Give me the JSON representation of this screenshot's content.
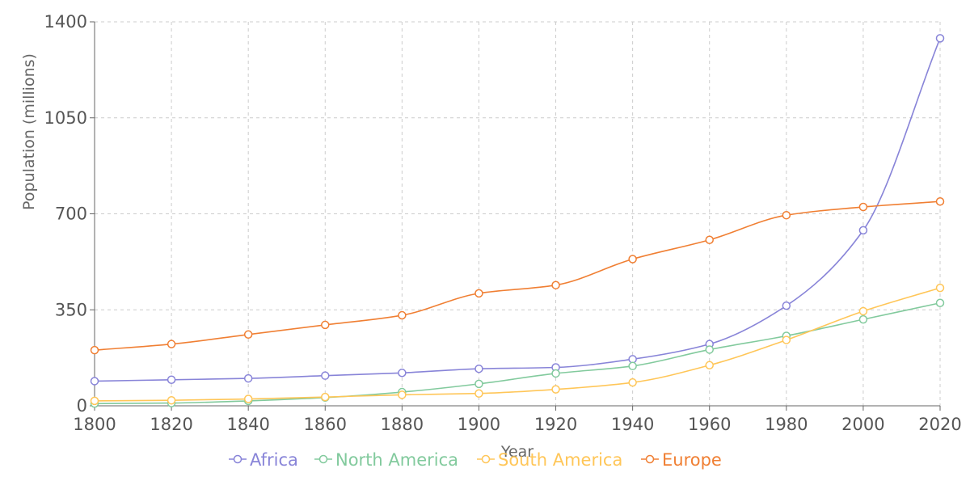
{
  "chart_data": {
    "type": "line",
    "xlabel": "Year",
    "ylabel": "Population (millions)",
    "x": [
      1800,
      1820,
      1840,
      1860,
      1880,
      1900,
      1920,
      1940,
      1960,
      1980,
      2000,
      2020
    ],
    "xlim": [
      1800,
      2020
    ],
    "ylim": [
      0,
      1400
    ],
    "yticks": [
      0,
      350,
      700,
      1050,
      1400
    ],
    "grid": true,
    "legend_position": "bottom",
    "series": [
      {
        "name": "Africa",
        "color": "#8884d8",
        "values": [
          90,
          95,
          100,
          110,
          120,
          135,
          140,
          170,
          225,
          365,
          640,
          1340
        ]
      },
      {
        "name": "North America",
        "color": "#82ca9d",
        "values": [
          8,
          10,
          18,
          30,
          50,
          80,
          118,
          145,
          205,
          255,
          315,
          375
        ]
      },
      {
        "name": "South America",
        "color": "#ffc658",
        "values": [
          18,
          20,
          25,
          32,
          40,
          45,
          60,
          85,
          148,
          240,
          345,
          430
        ]
      },
      {
        "name": "Europe",
        "color": "#f07f33",
        "values": [
          203,
          225,
          260,
          295,
          330,
          410,
          440,
          535,
          605,
          695,
          725,
          745
        ]
      }
    ]
  }
}
